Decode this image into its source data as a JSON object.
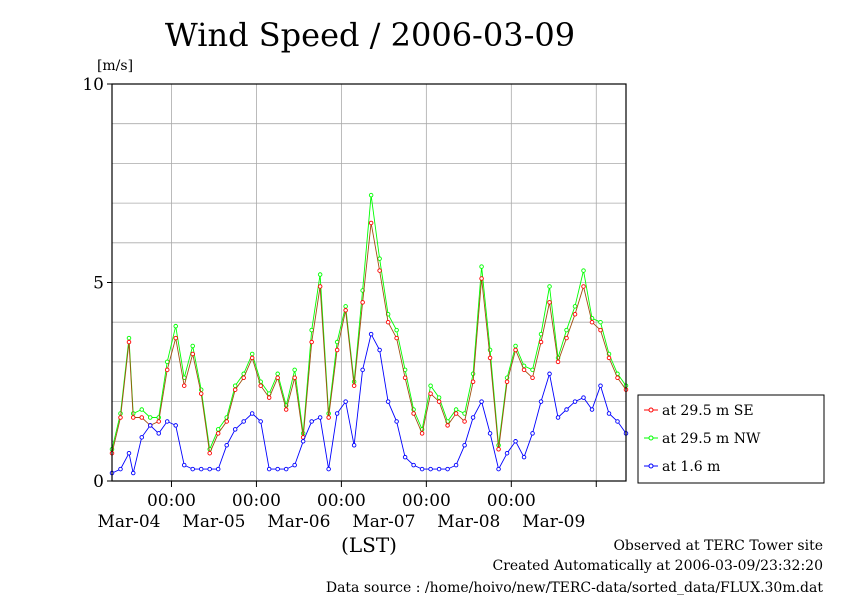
{
  "chart_data": {
    "type": "line",
    "title": "Wind Speed / 2006-03-09",
    "ylabel_unit": "[m/s]",
    "xlabel": "(LST)",
    "ylim": [
      0,
      10
    ],
    "y_ticks": [
      "0",
      "5",
      "10"
    ],
    "x_time_labels": [
      "00:00",
      "00:00",
      "00:00",
      "00:00",
      "00:00"
    ],
    "x_date_labels": [
      "Mar-04",
      "Mar-05",
      "Mar-06",
      "Mar-07",
      "Mar-08",
      "Mar-09"
    ],
    "x_range_days": [
      0.3,
      6.35
    ],
    "grid": true,
    "legend_position": "right-bottom",
    "series": [
      {
        "name": "at 29.5 m SE",
        "color": "#ff0000",
        "x": [
          0.3,
          0.4,
          0.5,
          0.55,
          0.65,
          0.75,
          0.85,
          0.95,
          1.05,
          1.15,
          1.25,
          1.35,
          1.45,
          1.55,
          1.65,
          1.75,
          1.85,
          1.95,
          2.05,
          2.15,
          2.25,
          2.35,
          2.45,
          2.55,
          2.65,
          2.75,
          2.85,
          2.95,
          3.05,
          3.15,
          3.25,
          3.35,
          3.45,
          3.55,
          3.65,
          3.75,
          3.85,
          3.95,
          4.05,
          4.15,
          4.25,
          4.35,
          4.45,
          4.55,
          4.65,
          4.75,
          4.85,
          4.95,
          5.05,
          5.15,
          5.25,
          5.35,
          5.45,
          5.55,
          5.65,
          5.75,
          5.85,
          5.95,
          6.05,
          6.15,
          6.25,
          6.35
        ],
        "values": [
          0.7,
          1.6,
          3.5,
          1.6,
          1.6,
          1.4,
          1.5,
          2.8,
          3.6,
          2.4,
          3.2,
          2.2,
          0.7,
          1.2,
          1.5,
          2.3,
          2.6,
          3.1,
          2.4,
          2.1,
          2.6,
          1.8,
          2.6,
          1.1,
          3.5,
          4.9,
          1.6,
          3.3,
          4.3,
          2.4,
          4.5,
          6.5,
          5.3,
          4.0,
          3.6,
          2.6,
          1.7,
          1.2,
          2.2,
          2.0,
          1.4,
          1.7,
          1.5,
          2.5,
          5.1,
          3.1,
          0.8,
          2.5,
          3.3,
          2.8,
          2.6,
          3.5,
          4.5,
          3.0,
          3.6,
          4.2,
          4.9,
          4.0,
          3.8,
          3.1,
          2.6,
          2.3
        ]
      },
      {
        "name": "at 29.5 m NW",
        "color": "#00ff00",
        "x": [
          0.3,
          0.4,
          0.5,
          0.55,
          0.65,
          0.75,
          0.85,
          0.95,
          1.05,
          1.15,
          1.25,
          1.35,
          1.45,
          1.55,
          1.65,
          1.75,
          1.85,
          1.95,
          2.05,
          2.15,
          2.25,
          2.35,
          2.45,
          2.55,
          2.65,
          2.75,
          2.85,
          2.95,
          3.05,
          3.15,
          3.25,
          3.35,
          3.45,
          3.55,
          3.65,
          3.75,
          3.85,
          3.95,
          4.05,
          4.15,
          4.25,
          4.35,
          4.45,
          4.55,
          4.65,
          4.75,
          4.85,
          4.95,
          5.05,
          5.15,
          5.25,
          5.35,
          5.45,
          5.55,
          5.65,
          5.75,
          5.85,
          5.95,
          6.05,
          6.15,
          6.25,
          6.35
        ],
        "values": [
          0.8,
          1.7,
          3.6,
          1.7,
          1.8,
          1.6,
          1.6,
          3.0,
          3.9,
          2.6,
          3.4,
          2.3,
          0.8,
          1.3,
          1.6,
          2.4,
          2.7,
          3.2,
          2.5,
          2.2,
          2.7,
          1.9,
          2.8,
          1.2,
          3.8,
          5.2,
          1.7,
          3.5,
          4.4,
          2.5,
          4.8,
          7.2,
          5.6,
          4.2,
          3.8,
          2.8,
          1.8,
          1.3,
          2.4,
          2.1,
          1.5,
          1.8,
          1.7,
          2.7,
          5.4,
          3.3,
          0.9,
          2.6,
          3.4,
          2.9,
          2.8,
          3.7,
          4.9,
          3.1,
          3.8,
          4.4,
          5.3,
          4.1,
          4.0,
          3.2,
          2.7,
          2.4
        ]
      },
      {
        "name": "at 1.6 m",
        "color": "#0000ff",
        "x": [
          0.3,
          0.4,
          0.5,
          0.55,
          0.65,
          0.75,
          0.85,
          0.95,
          1.05,
          1.15,
          1.25,
          1.35,
          1.45,
          1.55,
          1.65,
          1.75,
          1.85,
          1.95,
          2.05,
          2.15,
          2.25,
          2.35,
          2.45,
          2.55,
          2.65,
          2.75,
          2.85,
          2.95,
          3.05,
          3.15,
          3.25,
          3.35,
          3.45,
          3.55,
          3.65,
          3.75,
          3.85,
          3.95,
          4.05,
          4.15,
          4.25,
          4.35,
          4.45,
          4.55,
          4.65,
          4.75,
          4.85,
          4.95,
          5.05,
          5.15,
          5.25,
          5.35,
          5.45,
          5.55,
          5.65,
          5.75,
          5.85,
          5.95,
          6.05,
          6.15,
          6.25,
          6.35
        ],
        "values": [
          0.2,
          0.3,
          0.7,
          0.2,
          1.1,
          1.4,
          1.2,
          1.5,
          1.4,
          0.4,
          0.3,
          0.3,
          0.3,
          0.3,
          0.9,
          1.3,
          1.5,
          1.7,
          1.5,
          0.3,
          0.3,
          0.3,
          0.4,
          1.0,
          1.5,
          1.6,
          0.3,
          1.7,
          2.0,
          0.9,
          2.8,
          3.7,
          3.3,
          2.0,
          1.5,
          0.6,
          0.4,
          0.3,
          0.3,
          0.3,
          0.3,
          0.4,
          0.9,
          1.6,
          2.0,
          1.2,
          0.3,
          0.7,
          1.0,
          0.6,
          1.2,
          2.0,
          2.7,
          1.6,
          1.8,
          2.0,
          2.1,
          1.8,
          2.4,
          1.7,
          1.5,
          1.2
        ]
      }
    ]
  },
  "footer": {
    "site": "Observed at TERC Tower site",
    "created": "Created Automatically at 2006-03-09/23:32:20",
    "source": "Data source : /home/hoivo/new/TERC-data/sorted_data/FLUX.30m.dat"
  }
}
